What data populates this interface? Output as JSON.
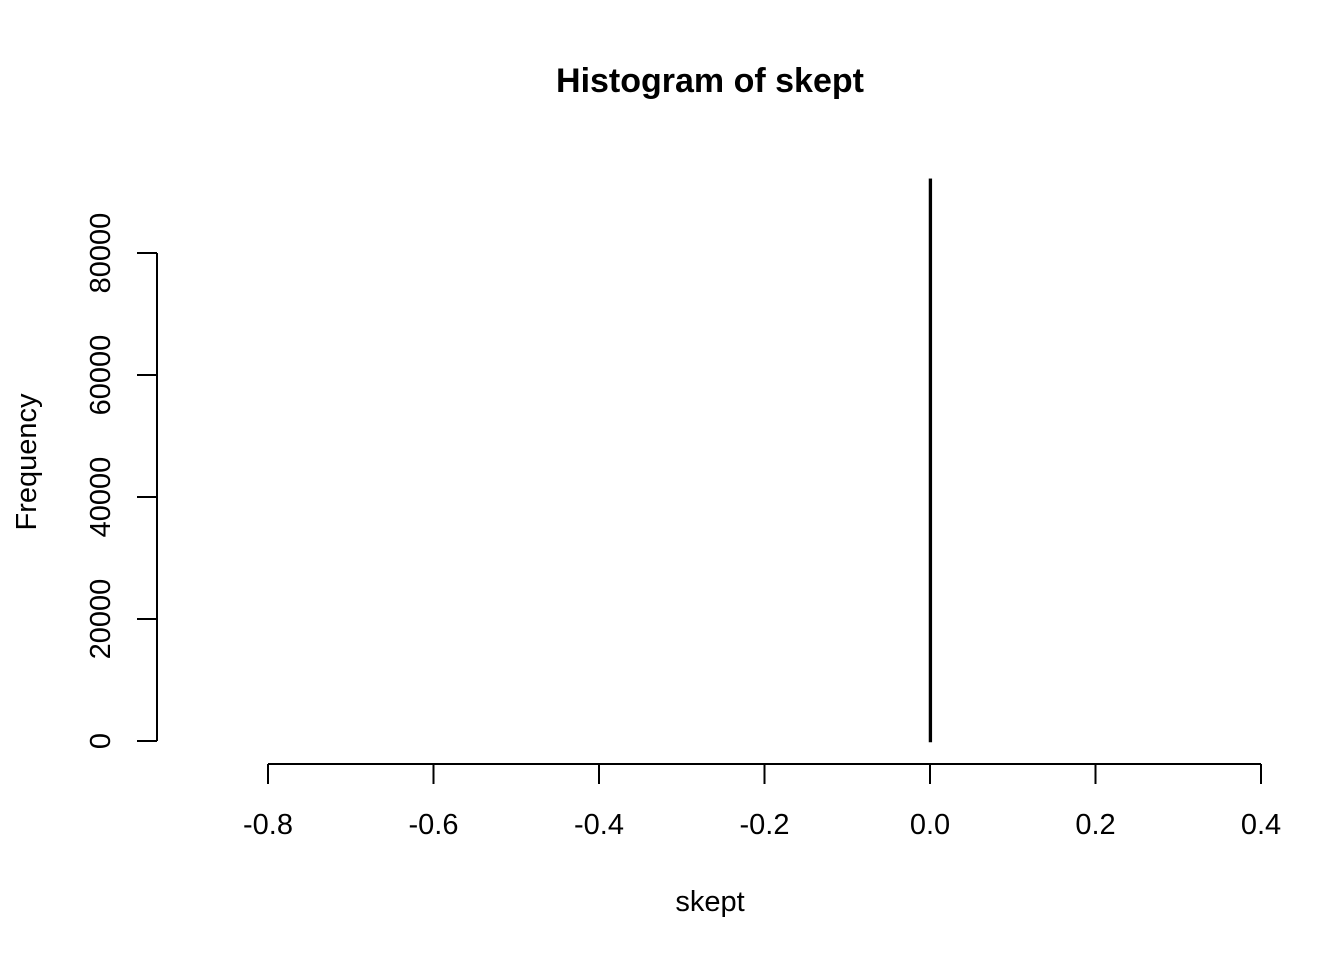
{
  "chart_data": {
    "type": "bar",
    "title": "Histogram of skept",
    "xlabel": "skept",
    "ylabel": "Frequency",
    "xlim": [
      -0.88,
      0.35
    ],
    "ylim": [
      0,
      92000
    ],
    "x_ticks": [
      "-0.8",
      "-0.6",
      "-0.4",
      "-0.2",
      "0.0",
      "0.2",
      "0.4"
    ],
    "y_ticks": [
      "0",
      "20000",
      "40000",
      "60000",
      "80000"
    ],
    "bins": [
      {
        "x0": -0.88,
        "x1": 0.0,
        "count": 0
      },
      {
        "x0": 0.0,
        "x1": 0.001,
        "count": 92000
      },
      {
        "x0": 0.001,
        "x1": 0.35,
        "count": 0
      }
    ],
    "grid": false,
    "legend": "none"
  }
}
